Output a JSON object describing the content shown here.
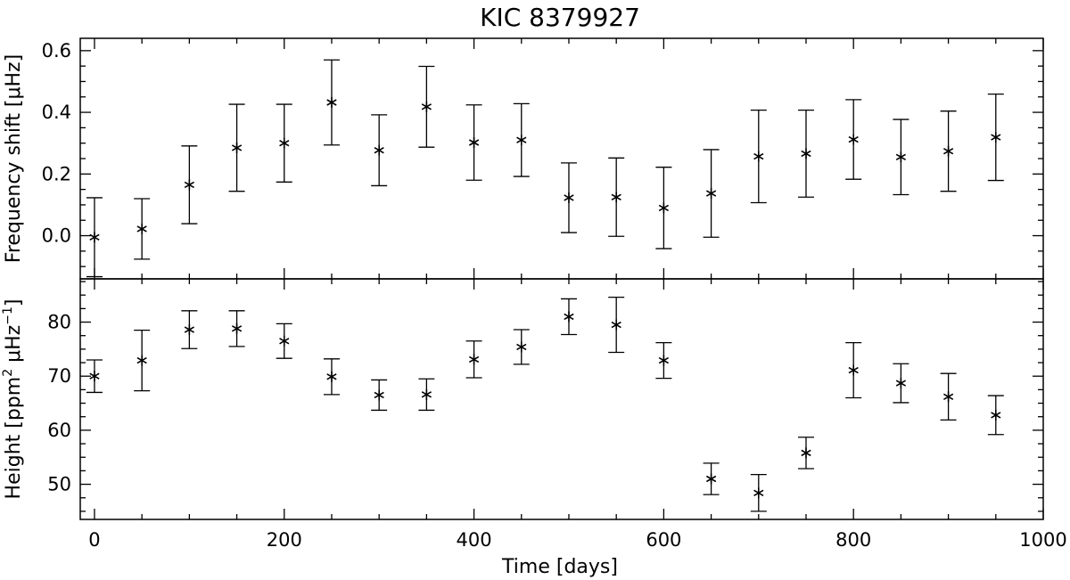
{
  "chart_data": [
    {
      "type": "scatter",
      "title": "KIC 8379927",
      "xlabel": "",
      "ylabel": {
        "text": "Frequency shift [",
        "unit": "μHz",
        "close": "]"
      },
      "xlim": [
        -15,
        1000
      ],
      "ylim": [
        -0.14,
        0.64
      ],
      "xticks": [
        0,
        200,
        400,
        600,
        800,
        1000
      ],
      "yticks": [
        0.0,
        0.2,
        0.4,
        0.6
      ],
      "ytick_labels": [
        "0.0",
        "0.2",
        "0.4",
        "0.6"
      ],
      "marker": "asterisk",
      "error_bars": true,
      "x": [
        0,
        50,
        100,
        150,
        200,
        250,
        300,
        350,
        400,
        450,
        500,
        550,
        600,
        650,
        700,
        750,
        800,
        850,
        900,
        950
      ],
      "y": [
        -0.005,
        0.022,
        0.165,
        0.285,
        0.3,
        0.432,
        0.277,
        0.418,
        0.302,
        0.31,
        0.123,
        0.125,
        0.09,
        0.137,
        0.257,
        0.266,
        0.312,
        0.255,
        0.274,
        0.319
      ],
      "yerr": [
        0.128,
        0.098,
        0.126,
        0.141,
        0.126,
        0.138,
        0.115,
        0.131,
        0.122,
        0.118,
        0.113,
        0.127,
        0.132,
        0.142,
        0.15,
        0.141,
        0.129,
        0.122,
        0.13,
        0.14
      ]
    },
    {
      "type": "scatter",
      "title": "",
      "xlabel": "Time [days]",
      "ylabel": {
        "text": "Height [ppm",
        "sup1": "2",
        "mid": " μHz",
        "sup2": "−1",
        "close": "]"
      },
      "xlim": [
        -15,
        1000
      ],
      "ylim": [
        43.5,
        88.0
      ],
      "xticks": [
        0,
        200,
        400,
        600,
        800,
        1000
      ],
      "xtick_labels": [
        "0",
        "200",
        "400",
        "600",
        "800",
        "1000"
      ],
      "yticks": [
        50,
        60,
        70,
        80
      ],
      "ytick_labels": [
        "50",
        "60",
        "70",
        "80"
      ],
      "marker": "asterisk",
      "error_bars": true,
      "x": [
        0,
        50,
        100,
        150,
        200,
        250,
        300,
        350,
        400,
        450,
        500,
        550,
        600,
        650,
        700,
        750,
        800,
        850,
        900,
        950
      ],
      "y": [
        70.0,
        72.9,
        78.6,
        78.8,
        76.5,
        69.9,
        66.5,
        66.6,
        73.1,
        75.4,
        81.0,
        79.5,
        72.9,
        51.0,
        48.4,
        55.8,
        71.1,
        68.7,
        66.2,
        62.8
      ],
      "yerr": [
        3.0,
        5.6,
        3.5,
        3.3,
        3.2,
        3.3,
        2.8,
        2.9,
        3.4,
        3.2,
        3.3,
        5.1,
        3.3,
        2.9,
        3.4,
        2.9,
        5.1,
        3.6,
        4.3,
        3.6
      ]
    }
  ]
}
